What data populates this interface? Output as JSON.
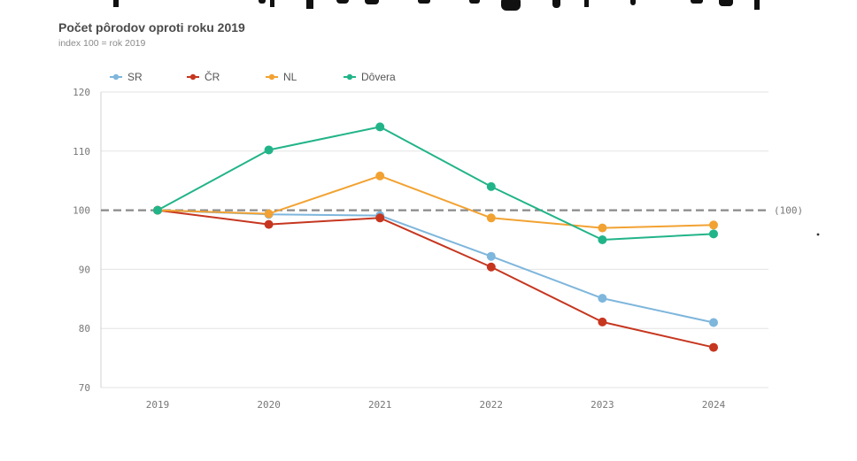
{
  "chart_data": {
    "type": "line",
    "title": "Počet pôrodov oproti roku 2019",
    "subtitle": "index 100 = rok 2019",
    "x": [
      "2019",
      "2020",
      "2021",
      "2022",
      "2023",
      "2024"
    ],
    "yticks": [
      70,
      80,
      90,
      100,
      110,
      120
    ],
    "ylim": [
      70,
      120
    ],
    "reference_line": {
      "value": 100,
      "label": "(100)"
    },
    "legend_position": "top-left",
    "grid": true,
    "series": [
      {
        "name": "SR",
        "color": "#7eb6dc",
        "values": [
          100,
          99.3,
          99.1,
          92.2,
          85.1,
          81.0
        ]
      },
      {
        "name": "ČR",
        "color": "#c6361f",
        "values": [
          100,
          97.6,
          98.7,
          90.4,
          81.1,
          76.8
        ]
      },
      {
        "name": "NL",
        "color": "#f2a232",
        "values": [
          100,
          99.4,
          105.8,
          98.7,
          97.0,
          97.5
        ]
      },
      {
        "name": "Dôvera",
        "color": "#22b489",
        "values": [
          100,
          110.2,
          114.1,
          104.0,
          95.0,
          96.0
        ]
      }
    ]
  }
}
